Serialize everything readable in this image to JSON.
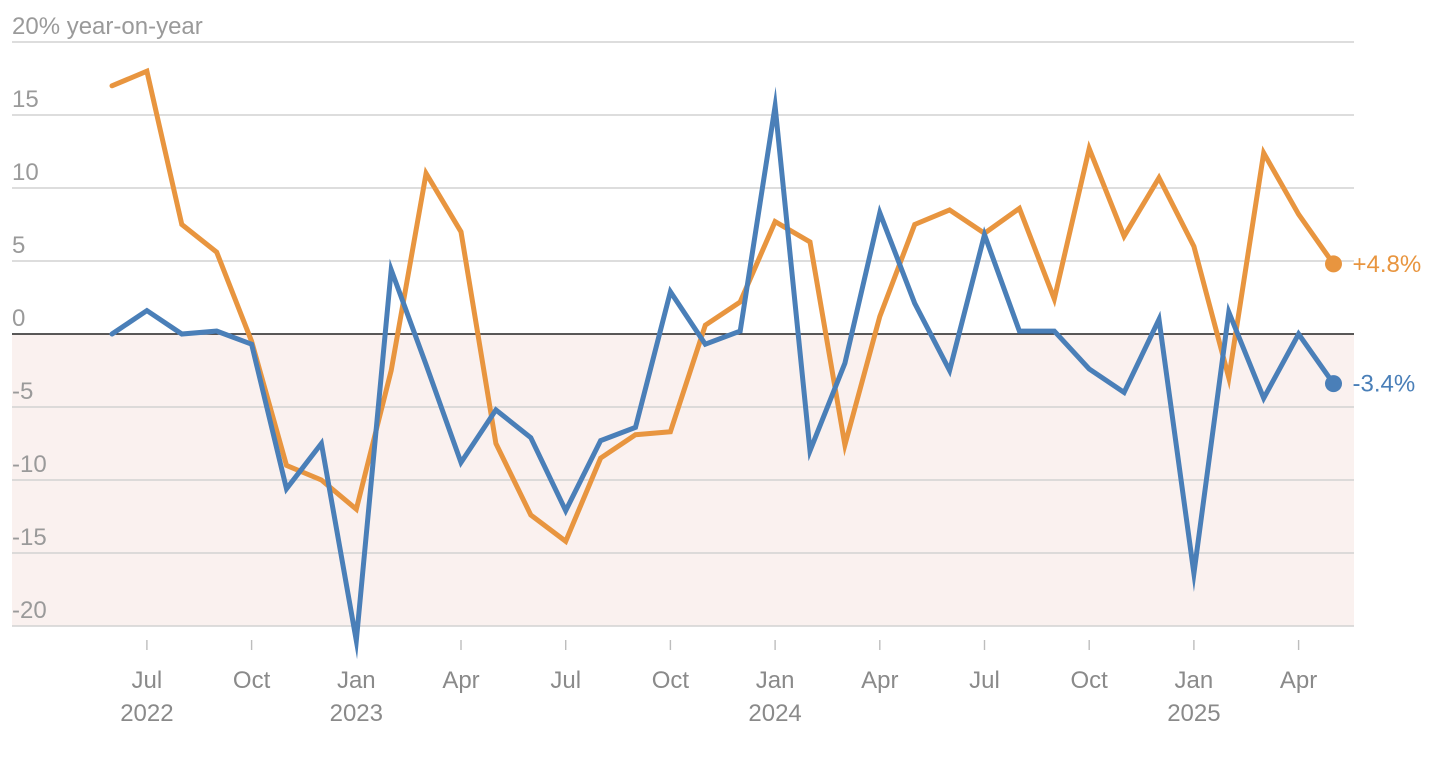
{
  "chart_data": {
    "type": "line",
    "ylabel": "20% year-on-year",
    "ylim": [
      -20,
      20
    ],
    "yticks": [
      {
        "value": 20,
        "label": "20% year-on-year"
      },
      {
        "value": 15,
        "label": "15"
      },
      {
        "value": 10,
        "label": "10"
      },
      {
        "value": 5,
        "label": "5"
      },
      {
        "value": 0,
        "label": "0"
      },
      {
        "value": -5,
        "label": "-5"
      },
      {
        "value": -10,
        "label": "-10"
      },
      {
        "value": -15,
        "label": "-15"
      },
      {
        "value": -20,
        "label": "-20"
      }
    ],
    "x_start": "2022-06",
    "xticks": [
      {
        "index": 1,
        "month": "Jul",
        "year": "2022"
      },
      {
        "index": 4,
        "month": "Oct",
        "year": ""
      },
      {
        "index": 7,
        "month": "Jan",
        "year": "2023"
      },
      {
        "index": 10,
        "month": "Apr",
        "year": ""
      },
      {
        "index": 13,
        "month": "Jul",
        "year": ""
      },
      {
        "index": 16,
        "month": "Oct",
        "year": ""
      },
      {
        "index": 19,
        "month": "Jan",
        "year": "2024"
      },
      {
        "index": 22,
        "month": "Apr",
        "year": ""
      },
      {
        "index": 25,
        "month": "Jul",
        "year": ""
      },
      {
        "index": 28,
        "month": "Oct",
        "year": ""
      },
      {
        "index": 31,
        "month": "Jan",
        "year": "2025"
      },
      {
        "index": 34,
        "month": "Apr",
        "year": ""
      }
    ],
    "negative_shading": true,
    "series": [
      {
        "name": "orange series",
        "color": "#e8953f",
        "end_label": "+4.8%",
        "values": [
          17,
          18,
          7.5,
          5.6,
          -0.5,
          -9,
          -10,
          -12,
          -2.5,
          11,
          7,
          -7.5,
          -12.4,
          -14.2,
          -8.5,
          -6.9,
          -6.7,
          0.6,
          2.2,
          7.7,
          6.3,
          -7.6,
          1.2,
          7.5,
          8.5,
          6.9,
          8.6,
          2.4,
          12.7,
          6.7,
          10.7,
          6,
          -3,
          12.4,
          8.2,
          4.8
        ]
      },
      {
        "name": "blue series",
        "color": "#4a7fb8",
        "end_label": "-3.4%",
        "values": [
          0,
          1.6,
          0,
          0.2,
          -0.7,
          -10.6,
          -7.5,
          -21,
          4.4,
          -2.1,
          -8.8,
          -5.2,
          -7.1,
          -12.1,
          -7.3,
          -6.4,
          2.9,
          -0.7,
          0.2,
          15.6,
          -8,
          -2,
          8.3,
          2.1,
          -2.5,
          6.8,
          0.2,
          0.2,
          -2.4,
          -4,
          1,
          -16.4,
          1.5,
          -4.4,
          0,
          -3.4
        ]
      }
    ]
  }
}
